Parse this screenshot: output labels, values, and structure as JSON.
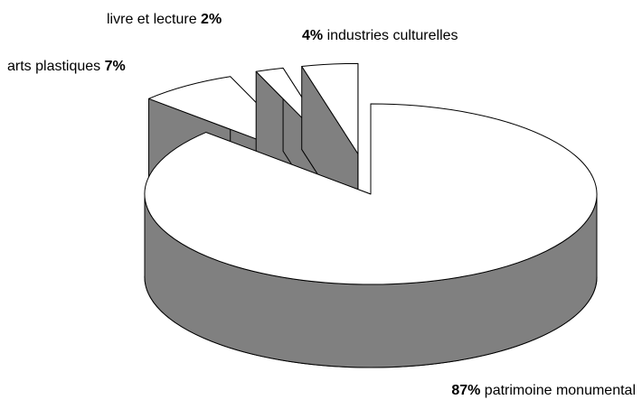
{
  "chart_data": {
    "type": "pie3d",
    "categories": [
      "patrimoine monumental",
      "arts plastiques",
      "livre et lecture",
      "industries culturelles"
    ],
    "values": [
      87,
      7,
      2,
      4
    ],
    "value_labels": [
      "87%",
      "7%",
      "2%",
      "4%"
    ],
    "colors": {
      "top": "#ffffff",
      "side": "#808080"
    }
  }
}
